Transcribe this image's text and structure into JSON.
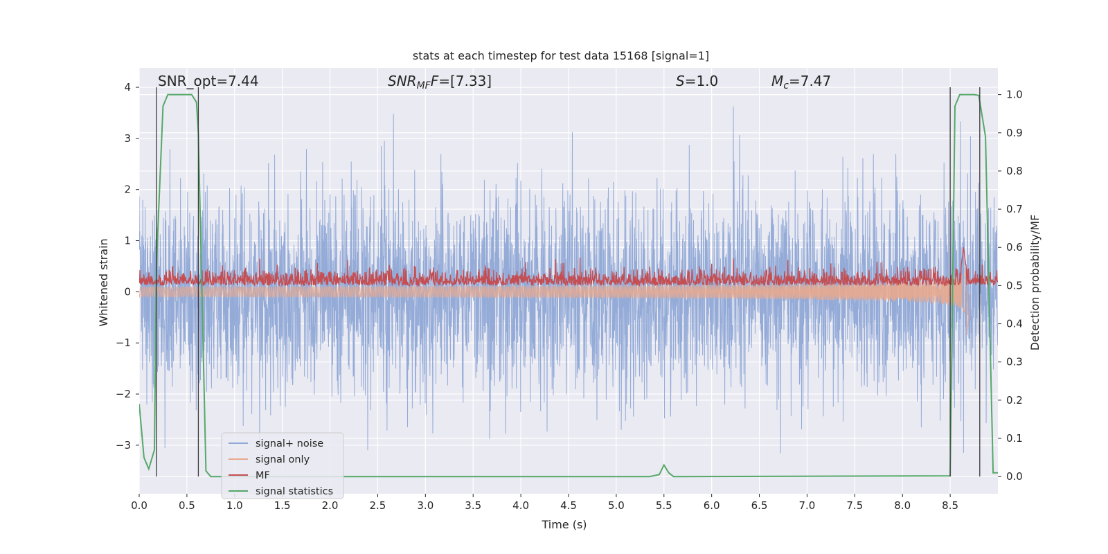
{
  "chart_data": {
    "type": "line",
    "title": "stats at each timestep for test data 15168 [signal=1]",
    "xlabel": "Time (s)",
    "ylabel_left": "Whitened strain",
    "ylabel_right": "Detection probability/MF",
    "xlim": [
      0.0,
      9.0
    ],
    "ylim_left": [
      -3.95,
      4.38
    ],
    "ylim_right": [
      -0.045,
      1.07
    ],
    "x_ticks": [
      "0.0",
      "0.5",
      "1.0",
      "1.5",
      "2.0",
      "2.5",
      "3.0",
      "3.5",
      "4.0",
      "4.5",
      "5.0",
      "5.5",
      "6.0",
      "6.5",
      "7.0",
      "7.5",
      "8.0",
      "8.5"
    ],
    "y_ticks_left": [
      "−3",
      "−2",
      "−1",
      "0",
      "1",
      "2",
      "3",
      "4"
    ],
    "y_ticks_right": [
      "0.0",
      "0.1",
      "0.2",
      "0.3",
      "0.4",
      "0.5",
      "0.6",
      "0.7",
      "0.8",
      "0.9",
      "1.0"
    ],
    "annotations": {
      "snr_opt": "SNR_opt=7.44",
      "snr_mf_main": "SNR",
      "snr_mf_sub": "MF",
      "snr_mf_value": "=[7.33]",
      "s_main": "S",
      "s_value": "=1.0",
      "mc_main": "M",
      "mc_sub": "c",
      "mc_value": "=7.47"
    },
    "legend": {
      "location": "lower-left",
      "entries": [
        {
          "label": "signal+ noise",
          "color": "#8fa8d6"
        },
        {
          "label": "signal only",
          "color": "#e8a98e"
        },
        {
          "label": "MF",
          "color": "#c44e52"
        },
        {
          "label": "signal statistics",
          "color": "#55a868"
        }
      ]
    },
    "series": [
      {
        "name": "signal+ noise",
        "axis": "left",
        "description": "whitened noise, fast oscillation roughly between -3.6 and 4.0",
        "envelope": [
          -3.6,
          4.0
        ]
      },
      {
        "name": "signal only",
        "axis": "left",
        "chirp_end_time": 8.68,
        "peak_amplitude": 0.85
      },
      {
        "name": "MF",
        "axis": "right",
        "baseline": 0.5,
        "noise_range": [
          0.48,
          0.54
        ],
        "peak": {
          "t": 8.64,
          "value": 0.6
        }
      },
      {
        "name": "signal statistics",
        "axis": "right",
        "x": [
          0.0,
          0.05,
          0.1,
          0.16,
          0.18,
          0.25,
          0.3,
          0.55,
          0.6,
          0.62,
          0.7,
          0.75,
          0.8,
          5.35,
          5.45,
          5.5,
          5.55,
          5.6,
          5.7,
          8.5,
          8.55,
          8.6,
          8.65,
          8.75,
          8.8,
          8.87,
          8.95,
          9.0
        ],
        "y": [
          0.19,
          0.05,
          0.02,
          0.07,
          0.55,
          0.97,
          1.0,
          1.0,
          0.98,
          0.9,
          0.015,
          0.0,
          0.0,
          0.0,
          0.005,
          0.03,
          0.01,
          0.0,
          0.0,
          0.002,
          0.97,
          1.0,
          1.0,
          1.0,
          0.998,
          0.89,
          0.01,
          0.01
        ]
      }
    ],
    "vertical_lines": [
      0.18,
      0.62,
      8.5,
      8.81
    ]
  }
}
